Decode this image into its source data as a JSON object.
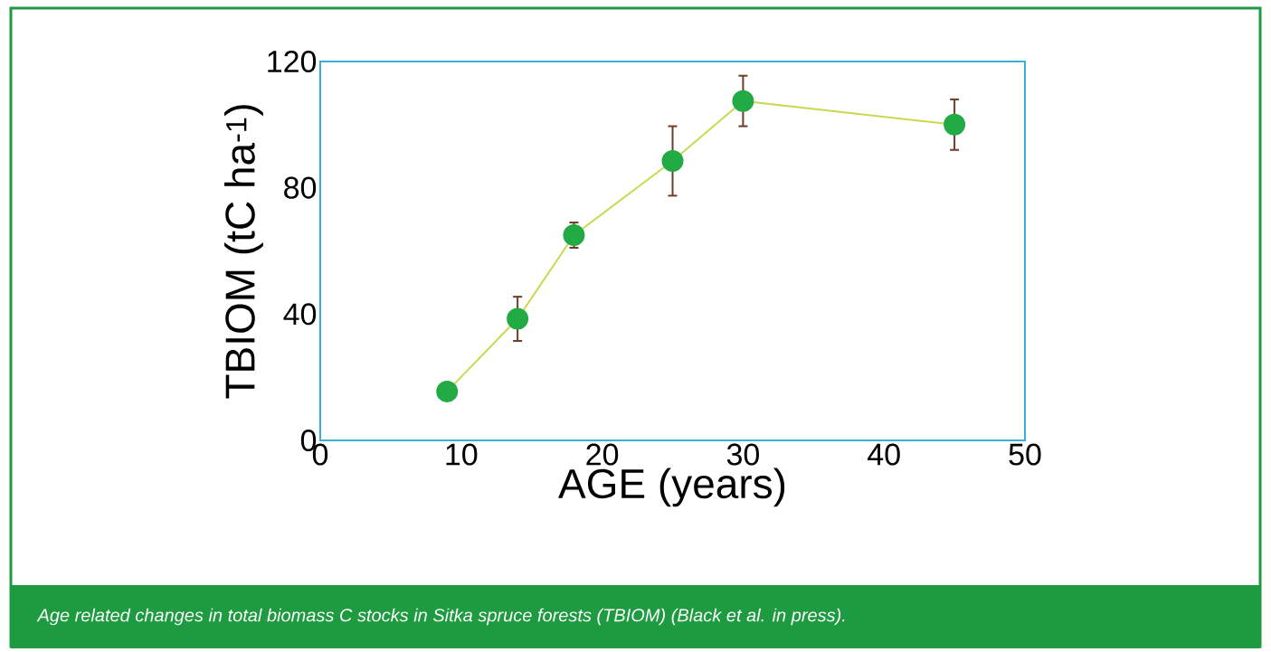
{
  "chart_data": {
    "type": "line",
    "xlabel": "AGE (years)",
    "ylabel": "TBIOM (tC ha$^{-1}$)",
    "x": [
      9,
      14,
      18,
      25,
      30,
      45
    ],
    "values": [
      15.5,
      38.5,
      65,
      88.5,
      107.5,
      100
    ],
    "errors": [
      null,
      7,
      4,
      11,
      8,
      8
    ],
    "color": "#22aa44",
    "marker": "circle",
    "line_style": "solid",
    "xlim": [
      0,
      50
    ],
    "ylim": [
      0,
      120
    ],
    "xticks": [
      0,
      10,
      20,
      30,
      40,
      50
    ],
    "yticks": [
      0,
      40,
      80,
      120
    ],
    "annotations": [
      "Age related changes in total biomass C stocks in Sitka spruce forests (TBIOM) (Black et al. in press)."
    ]
  }
}
